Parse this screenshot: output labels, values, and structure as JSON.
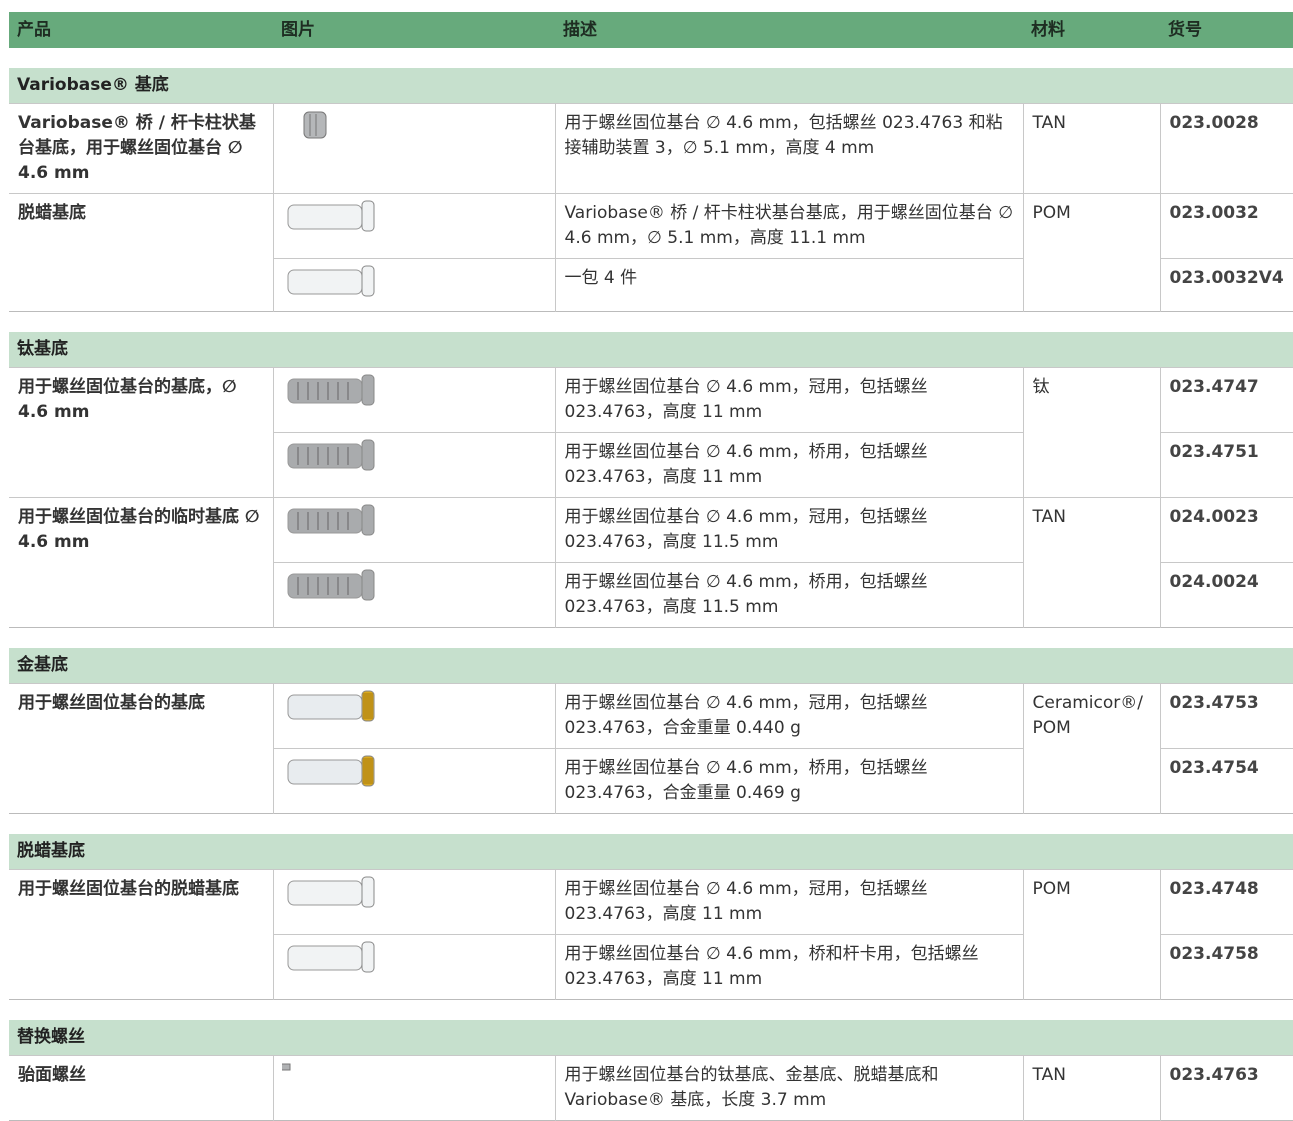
{
  "header": [
    "产品",
    "图片",
    "描述",
    "材料",
    "货号"
  ],
  "sections": [
    {
      "title": "Variobase® 基底",
      "products": [
        {
          "name": "Variobase® 桥 / 杆卡柱状基台基底，用于螺丝固位基台 ∅ 4.6 mm",
          "material": "TAN",
          "items": [
            {
              "desc": "用于螺丝固位基台 ∅ 4.6 mm，包括螺丝 023.4763 和粘接辅助装置 3，∅ 5.1 mm，高度 4 mm",
              "article": "023.0028"
            }
          ]
        },
        {
          "name": "脱蜡基底",
          "material": "POM",
          "items": [
            {
              "desc": "Variobase® 桥 / 杆卡柱状基台基底，用于螺丝固位基台 ∅ 4.6 mm，∅ 5.1 mm，高度 11.1 mm",
              "article": "023.0032"
            },
            {
              "desc": "一包 4 件",
              "article": "023.0032V4"
            }
          ]
        }
      ]
    },
    {
      "title": "钛基底",
      "products": [
        {
          "name": "用于螺丝固位基台的基底，∅ 4.6 mm",
          "material": "钛",
          "items": [
            {
              "desc": "用于螺丝固位基台 ∅ 4.6 mm，冠用，包括螺丝 023.4763，高度 11 mm",
              "article": "023.4747"
            },
            {
              "desc": "用于螺丝固位基台 ∅ 4.6 mm，桥用，包括螺丝 023.4763，高度 11 mm",
              "article": "023.4751"
            }
          ]
        },
        {
          "name": "用于螺丝固位基台的临时基底 ∅ 4.6 mm",
          "material": "TAN",
          "items": [
            {
              "desc": "用于螺丝固位基台 ∅ 4.6 mm，冠用，包括螺丝 023.4763，高度 11.5 mm",
              "article": "024.0023"
            },
            {
              "desc": "用于螺丝固位基台 ∅ 4.6 mm，桥用，包括螺丝 023.4763，高度 11.5 mm",
              "article": "024.0024"
            }
          ]
        }
      ]
    },
    {
      "title": "金基底",
      "products": [
        {
          "name": "用于螺丝固位基台的基底",
          "material": "Ceramicor®/ POM",
          "items": [
            {
              "desc": "用于螺丝固位基台 ∅ 4.6 mm，冠用，包括螺丝 023.4763，合金重量 0.440 g",
              "article": "023.4753"
            },
            {
              "desc": "用于螺丝固位基台 ∅ 4.6 mm，桥用，包括螺丝 023.4763，合金重量 0.469 g",
              "article": "023.4754"
            }
          ]
        }
      ]
    },
    {
      "title": "脱蜡基底",
      "products": [
        {
          "name": "用于螺丝固位基台的脱蜡基底",
          "material": "POM",
          "items": [
            {
              "desc": "用于螺丝固位基台 ∅ 4.6 mm，冠用，包括螺丝 023.4763，高度 11 mm",
              "article": "023.4748"
            },
            {
              "desc": "用于螺丝固位基台 ∅ 4.6 mm，桥和杆卡用，包括螺丝 023.4763，高度 11 mm",
              "article": "023.4758"
            }
          ]
        }
      ]
    },
    {
      "title": "替换螺丝",
      "products": [
        {
          "name": "骀面螺丝",
          "material": "TAN",
          "items": [
            {
              "desc": "用于螺丝固位基台的钛基底、金基底、脱蜡基底和 Variobase® 基底，长度 3.7 mm",
              "article": "023.4763"
            }
          ]
        }
      ]
    }
  ]
}
